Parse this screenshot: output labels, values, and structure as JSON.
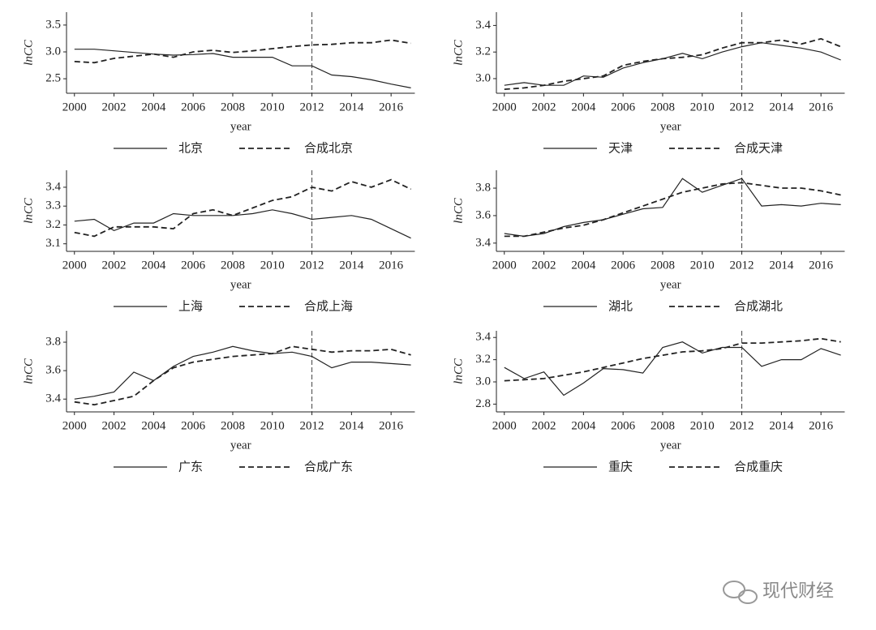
{
  "chart_data": [
    {
      "type": "line",
      "ylabel": "lnCC",
      "xlabel": "year",
      "x": [
        2000,
        2001,
        2002,
        2003,
        2004,
        2005,
        2006,
        2007,
        2008,
        2009,
        2010,
        2011,
        2012,
        2013,
        2014,
        2015,
        2016,
        2017
      ],
      "xlim": [
        1999.6,
        2017.2
      ],
      "xticks": [
        2000,
        2002,
        2004,
        2006,
        2008,
        2010,
        2012,
        2014,
        2016
      ],
      "ylim": [
        2.23,
        3.74
      ],
      "yticks": [
        2.5,
        {
          "value": 3,
          "label": "3.0"
        },
        3.5
      ],
      "vline": 2012,
      "series": [
        {
          "name": "北京",
          "color": "#222222",
          "style": "solid",
          "values": [
            3.05,
            3.05,
            3.02,
            2.99,
            2.96,
            2.94,
            2.95,
            2.97,
            2.9,
            2.9,
            2.9,
            2.74,
            2.74,
            2.57,
            2.54,
            2.48,
            2.4,
            2.33
          ]
        },
        {
          "name": "合成北京",
          "color": "#222222",
          "style": "dashed",
          "values": [
            2.82,
            2.8,
            2.88,
            2.92,
            2.96,
            2.9,
            3.0,
            3.03,
            2.99,
            3.02,
            3.06,
            3.1,
            3.13,
            3.14,
            3.17,
            3.17,
            3.22,
            3.16
          ]
        }
      ]
    },
    {
      "type": "line",
      "ylabel": "lnCC",
      "xlabel": "year",
      "x": [
        2000,
        2001,
        2002,
        2003,
        2004,
        2005,
        2006,
        2007,
        2008,
        2009,
        2010,
        2011,
        2012,
        2013,
        2014,
        2015,
        2016,
        2017
      ],
      "xlim": [
        1999.6,
        2017.2
      ],
      "xticks": [
        2000,
        2002,
        2004,
        2006,
        2008,
        2010,
        2012,
        2014,
        2016
      ],
      "ylim": [
        2.89,
        3.5
      ],
      "yticks": [
        {
          "value": 3,
          "label": "3.0"
        },
        3.2,
        3.4
      ],
      "vline": 2012,
      "series": [
        {
          "name": "天津",
          "color": "#222222",
          "style": "solid",
          "values": [
            2.95,
            2.97,
            2.95,
            2.95,
            3.02,
            3.01,
            3.08,
            3.12,
            3.15,
            3.19,
            3.15,
            3.2,
            3.24,
            3.27,
            3.25,
            3.23,
            3.2,
            3.14
          ]
        },
        {
          "name": "合成天津",
          "color": "#222222",
          "style": "dashed",
          "values": [
            2.92,
            2.93,
            2.95,
            2.98,
            3.0,
            3.02,
            3.1,
            3.13,
            3.15,
            3.16,
            3.18,
            3.23,
            3.27,
            3.27,
            3.29,
            3.26,
            3.3,
            3.24
          ]
        }
      ]
    },
    {
      "type": "line",
      "ylabel": "lnCC",
      "xlabel": "year",
      "x": [
        2000,
        2001,
        2002,
        2003,
        2004,
        2005,
        2006,
        2007,
        2008,
        2009,
        2010,
        2011,
        2012,
        2013,
        2014,
        2015,
        2016,
        2017
      ],
      "xlim": [
        1999.6,
        2017.2
      ],
      "xticks": [
        2000,
        2002,
        2004,
        2006,
        2008,
        2010,
        2012,
        2014,
        2016
      ],
      "ylim": [
        3.06,
        3.49
      ],
      "yticks": [
        3.1,
        3.2,
        3.3,
        3.4
      ],
      "vline": 2012,
      "series": [
        {
          "name": "上海",
          "color": "#222222",
          "style": "solid",
          "values": [
            3.22,
            3.23,
            3.17,
            3.21,
            3.21,
            3.26,
            3.25,
            3.25,
            3.25,
            3.26,
            3.28,
            3.26,
            3.23,
            3.24,
            3.25,
            3.23,
            3.18,
            3.13
          ]
        },
        {
          "name": "合成上海",
          "color": "#222222",
          "style": "dashed",
          "values": [
            3.16,
            3.14,
            3.19,
            3.19,
            3.19,
            3.18,
            3.26,
            3.28,
            3.25,
            3.29,
            3.33,
            3.35,
            3.4,
            3.38,
            3.43,
            3.4,
            3.44,
            3.39
          ]
        }
      ]
    },
    {
      "type": "line",
      "ylabel": "lnCC",
      "xlabel": "year",
      "x": [
        2000,
        2001,
        2002,
        2003,
        2004,
        2005,
        2006,
        2007,
        2008,
        2009,
        2010,
        2011,
        2012,
        2013,
        2014,
        2015,
        2016,
        2017
      ],
      "xlim": [
        1999.6,
        2017.2
      ],
      "xticks": [
        2000,
        2002,
        2004,
        2006,
        2008,
        2010,
        2012,
        2014,
        2016
      ],
      "ylim": [
        3.34,
        3.93
      ],
      "yticks": [
        3.4,
        3.6,
        3.8
      ],
      "vline": 2012,
      "series": [
        {
          "name": "湖北",
          "color": "#222222",
          "style": "solid",
          "values": [
            3.47,
            3.45,
            3.47,
            3.52,
            3.55,
            3.57,
            3.61,
            3.65,
            3.66,
            3.87,
            3.77,
            3.82,
            3.87,
            3.67,
            3.68,
            3.67,
            3.69,
            3.68
          ]
        },
        {
          "name": "合成湖北",
          "color": "#222222",
          "style": "dashed",
          "values": [
            3.45,
            3.45,
            3.48,
            3.51,
            3.53,
            3.57,
            3.62,
            3.67,
            3.72,
            3.77,
            3.8,
            3.83,
            3.84,
            3.82,
            3.8,
            3.8,
            3.78,
            3.75
          ]
        }
      ]
    },
    {
      "type": "line",
      "ylabel": "lnCC",
      "xlabel": "year",
      "x": [
        2000,
        2001,
        2002,
        2003,
        2004,
        2005,
        2006,
        2007,
        2008,
        2009,
        2010,
        2011,
        2012,
        2013,
        2014,
        2015,
        2016,
        2017
      ],
      "xlim": [
        1999.6,
        2017.2
      ],
      "xticks": [
        2000,
        2002,
        2004,
        2006,
        2008,
        2010,
        2012,
        2014,
        2016
      ],
      "ylim": [
        3.31,
        3.88
      ],
      "yticks": [
        3.4,
        3.6,
        3.8
      ],
      "vline": 2012,
      "series": [
        {
          "name": "广东",
          "color": "#222222",
          "style": "solid",
          "values": [
            3.4,
            3.42,
            3.45,
            3.59,
            3.53,
            3.63,
            3.7,
            3.73,
            3.77,
            3.74,
            3.72,
            3.73,
            3.7,
            3.62,
            3.66,
            3.66,
            3.65,
            3.64
          ]
        },
        {
          "name": "合成广东",
          "color": "#222222",
          "style": "dashed",
          "values": [
            3.38,
            3.36,
            3.39,
            3.42,
            3.53,
            3.62,
            3.66,
            3.68,
            3.7,
            3.71,
            3.72,
            3.77,
            3.75,
            3.73,
            3.74,
            3.74,
            3.75,
            3.71
          ]
        }
      ]
    },
    {
      "type": "line",
      "ylabel": "lnCC",
      "xlabel": "year",
      "x": [
        2000,
        2001,
        2002,
        2003,
        2004,
        2005,
        2006,
        2007,
        2008,
        2009,
        2010,
        2011,
        2012,
        2013,
        2014,
        2015,
        2016,
        2017
      ],
      "xlim": [
        1999.6,
        2017.2
      ],
      "xticks": [
        2000,
        2002,
        2004,
        2006,
        2008,
        2010,
        2012,
        2014,
        2016
      ],
      "ylim": [
        2.73,
        3.46
      ],
      "yticks": [
        2.8,
        {
          "value": 3,
          "label": "3.0"
        },
        3.2,
        3.4
      ],
      "vline": 2012,
      "series": [
        {
          "name": "重庆",
          "color": "#222222",
          "style": "solid",
          "values": [
            3.13,
            3.03,
            3.09,
            2.88,
            2.99,
            3.12,
            3.11,
            3.08,
            3.31,
            3.36,
            3.26,
            3.31,
            3.31,
            3.14,
            3.2,
            3.2,
            3.3,
            3.24
          ]
        },
        {
          "name": "合成重庆",
          "color": "#222222",
          "style": "dashed",
          "values": [
            3.01,
            3.02,
            3.03,
            3.06,
            3.09,
            3.13,
            3.17,
            3.21,
            3.24,
            3.27,
            3.28,
            3.3,
            3.35,
            3.35,
            3.36,
            3.37,
            3.39,
            3.36
          ]
        }
      ]
    }
  ],
  "watermark": "现代财经"
}
